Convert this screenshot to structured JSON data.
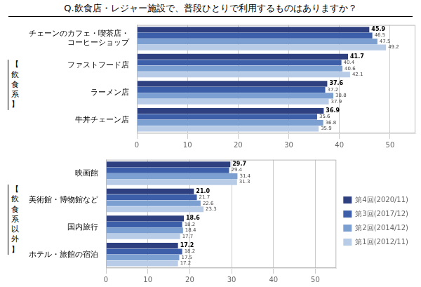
{
  "chart_data": [
    {
      "type": "bar",
      "orientation": "horizontal",
      "title": "Q.飲食店・レジャー施設で、普段ひとりで利用するものはありますか？",
      "ylabel": "【\n飲\n食\n系\n】",
      "categories": [
        "チェーンのカフェ・喫茶店・\nコーヒーショップ",
        "ファストフード店",
        "ラーメン店",
        "牛丼チェーン店"
      ],
      "series": [
        {
          "color": "#2E4080",
          "values": [
            45.9,
            41.7,
            37.6,
            36.9
          ],
          "value_labels": [
            "45.9",
            "41.7",
            "37.6",
            "36.9"
          ]
        },
        {
          "color": "#3D5FAA",
          "values": [
            46.5,
            40.4,
            37.2,
            35.6
          ],
          "value_labels": [
            "46.5",
            "40.4",
            "37.2",
            "35.6"
          ]
        },
        {
          "color": "#7B9FD0",
          "values": [
            47.5,
            40.6,
            38.8,
            36.8
          ],
          "value_labels": [
            "47.5",
            "40.6",
            "38.8",
            "36.8"
          ]
        },
        {
          "color": "#B8CCE8",
          "values": [
            49.2,
            42.1,
            37.9,
            35.9
          ],
          "value_labels": [
            "49.2",
            "42.1",
            "37.9",
            "35.9"
          ]
        }
      ],
      "xlim": [
        0,
        55
      ],
      "xticks": [
        0,
        10,
        20,
        30,
        40,
        50
      ],
      "grid": true,
      "data_labels": true
    },
    {
      "type": "bar",
      "orientation": "horizontal",
      "ylabel": "【\n飲\n食\n系\n以\n外\n】",
      "categories": [
        "映画館",
        "美術館・博物館など",
        "国内旅行",
        "ホテル・旅館の宿泊"
      ],
      "series": [
        {
          "name": "第4回(2020/11)",
          "color": "#2E4080",
          "values": [
            29.7,
            21.0,
            18.6,
            17.2
          ],
          "value_labels": [
            "29.7",
            "21.0",
            "18.6",
            "17.2"
          ]
        },
        {
          "name": "第3回(2017/12)",
          "color": "#3D5FAA",
          "values": [
            29.4,
            21.7,
            18.2,
            18.2
          ],
          "value_labels": [
            "29.4",
            "21.7",
            "18.2",
            "18.2"
          ]
        },
        {
          "name": "第2回(2014/12)",
          "color": "#7B9FD0",
          "values": [
            31.4,
            22.6,
            18.4,
            17.5
          ],
          "value_labels": [
            "31.4",
            "22.6",
            "18.4",
            "17.5"
          ]
        },
        {
          "name": "第1回(2012/11)",
          "color": "#B8CCE8",
          "values": [
            31.3,
            23.3,
            17.7,
            17.2
          ],
          "value_labels": [
            "31.3",
            "23.3",
            "17.7",
            "17.2"
          ]
        }
      ],
      "xlim": [
        0,
        55
      ],
      "xticks": [
        0,
        10,
        20,
        30,
        40,
        50
      ],
      "grid": true,
      "data_labels": true,
      "legend": "right"
    }
  ]
}
